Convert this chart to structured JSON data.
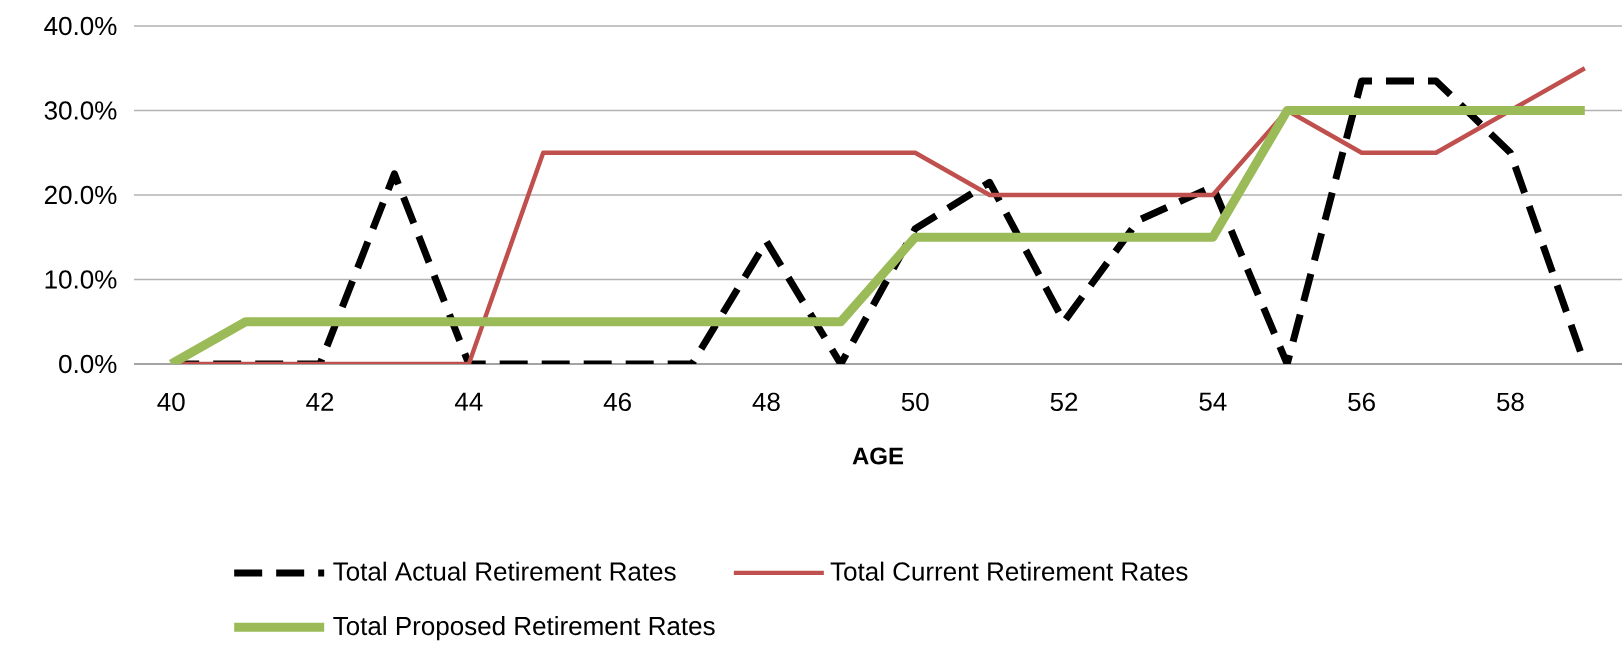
{
  "chart_data": {
    "type": "line",
    "xlabel": "AGE",
    "categories": [
      "40",
      null,
      "42",
      null,
      "44",
      null,
      "46",
      null,
      "48",
      null,
      "50",
      null,
      "52",
      null,
      "54",
      null,
      "56",
      null,
      "58",
      null
    ],
    "series": [
      {
        "name": "Total Actual Retirement Rates",
        "color": "#000000",
        "line_style": "dashed",
        "values": [
          0,
          0,
          0,
          22.5,
          0,
          0,
          0,
          0,
          14.5,
          0,
          16,
          21.5,
          5,
          17,
          21,
          0,
          33.5,
          33.5,
          25,
          0
        ]
      },
      {
        "name": "Total Current Retirement Rates",
        "color": "#c0504d",
        "line_style": "solid",
        "values": [
          0,
          0,
          0,
          0,
          0,
          25,
          25,
          25,
          25,
          25,
          25,
          20,
          20,
          20,
          20,
          30,
          25,
          25,
          30,
          35
        ]
      },
      {
        "name": "Total Proposed Retirement Rates",
        "color": "#9bbb59",
        "line_style": "solid",
        "values": [
          0,
          5,
          5,
          5,
          5,
          5,
          5,
          5,
          5,
          5,
          15,
          15,
          15,
          15,
          15,
          30,
          30,
          30,
          30,
          30
        ]
      }
    ],
    "ylim": [
      0,
      40
    ],
    "yticks": [
      {
        "value": 0,
        "label": "0.0%"
      },
      {
        "value": 10,
        "label": "10.0%"
      },
      {
        "value": 20,
        "label": "20.0%"
      },
      {
        "value": 30,
        "label": "30.0%"
      },
      {
        "value": 40,
        "label": "40.0%"
      }
    ],
    "grid": "y",
    "legend": "bottom",
    "marker": "none"
  }
}
